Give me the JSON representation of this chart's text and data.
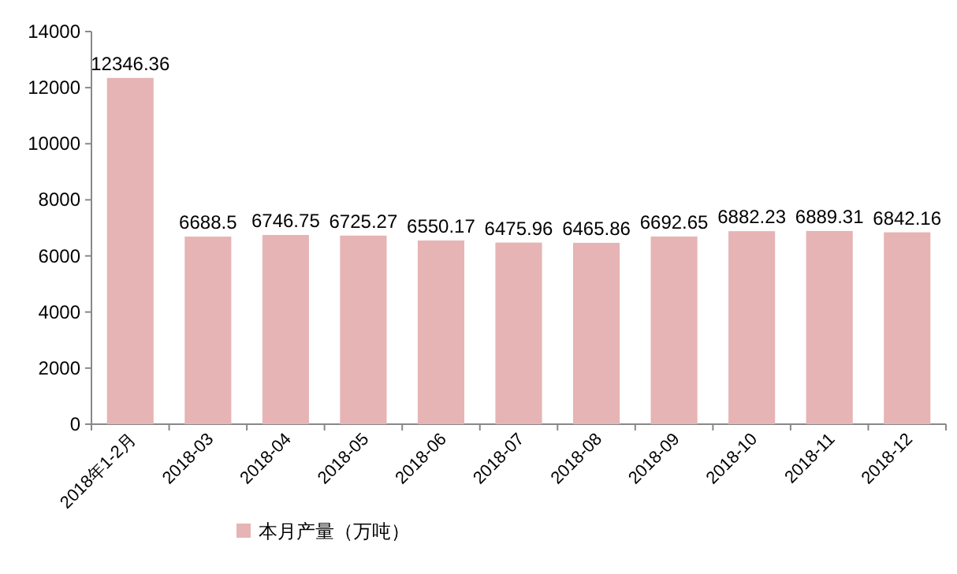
{
  "chart_data": {
    "type": "bar",
    "categories": [
      "2018年1-2月",
      "2018-03",
      "2018-04",
      "2018-05",
      "2018-06",
      "2018-07",
      "2018-08",
      "2018-09",
      "2018-10",
      "2018-11",
      "2018-12"
    ],
    "series": [
      {
        "name": "本月产量（万吨）",
        "color": "#e6b4b4",
        "values": [
          12346.36,
          6688.5,
          6746.75,
          6725.27,
          6550.17,
          6475.96,
          6465.86,
          6692.65,
          6882.23,
          6889.31,
          6842.16
        ]
      }
    ],
    "ylim": [
      0,
      14000
    ],
    "yticks": [
      0,
      2000,
      4000,
      6000,
      8000,
      10000,
      12000,
      14000
    ],
    "data_labels": true,
    "legend": "bottom",
    "grid": false
  }
}
